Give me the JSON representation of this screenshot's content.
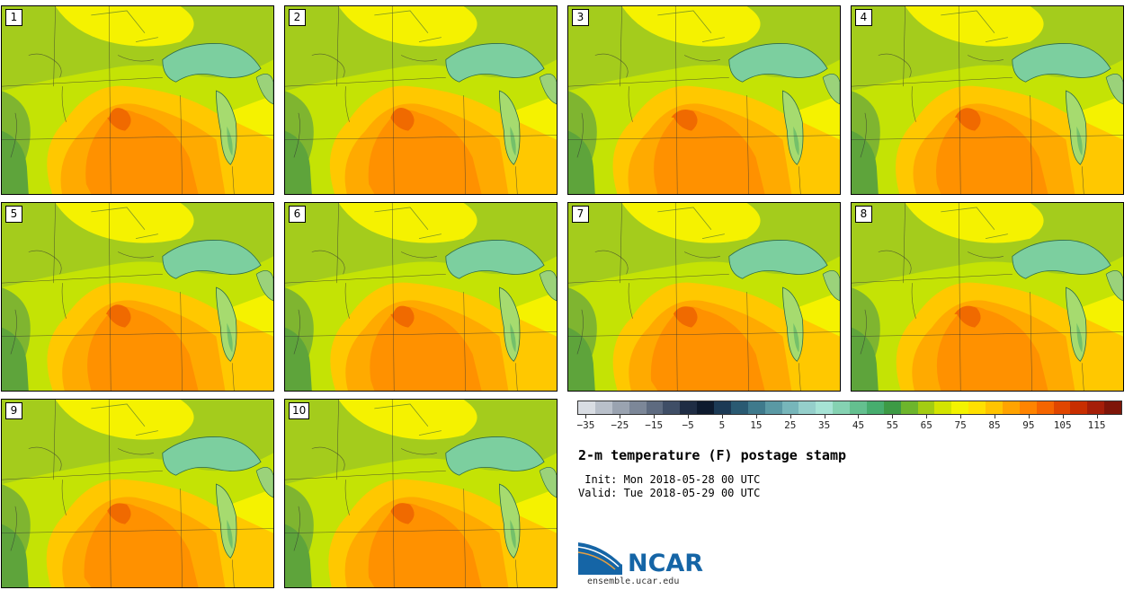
{
  "stamps": [
    {
      "label": "1"
    },
    {
      "label": "2"
    },
    {
      "label": "3"
    },
    {
      "label": "4"
    },
    {
      "label": "5"
    },
    {
      "label": "6"
    },
    {
      "label": "7"
    },
    {
      "label": "8"
    },
    {
      "label": "9"
    },
    {
      "label": "10"
    }
  ],
  "colorbar": {
    "colors": [
      "#d9dde3",
      "#b9c0ca",
      "#9aa3b0",
      "#7c8798",
      "#5e6b80",
      "#3f4e66",
      "#1f2d44",
      "#0d1a2e",
      "#1c3a55",
      "#2a5a72",
      "#3f7a8c",
      "#5a99a4",
      "#77b6ba",
      "#95cfcb",
      "#a6e3d5",
      "#85d2b2",
      "#64c08f",
      "#47ad6e",
      "#3d9a45",
      "#6db52c",
      "#a3cc12",
      "#d3e400",
      "#f3f300",
      "#ffe000",
      "#ffc400",
      "#ffa300",
      "#ff8400",
      "#f56500",
      "#e04600",
      "#c82e00",
      "#a51e08",
      "#7e1508"
    ],
    "ticks": [
      "−35",
      "−25",
      "−15",
      "−5",
      "5",
      "15",
      "25",
      "35",
      "45",
      "55",
      "65",
      "75",
      "85",
      "95",
      "105",
      "115"
    ]
  },
  "title": "2-m temperature (F) postage stamp",
  "init": " Init: Mon 2018-05-28 00 UTC",
  "valid": "Valid: Tue 2018-05-29 00 UTC",
  "logo": {
    "text": "NCAR",
    "url": "ensemble.ucar.edu"
  }
}
